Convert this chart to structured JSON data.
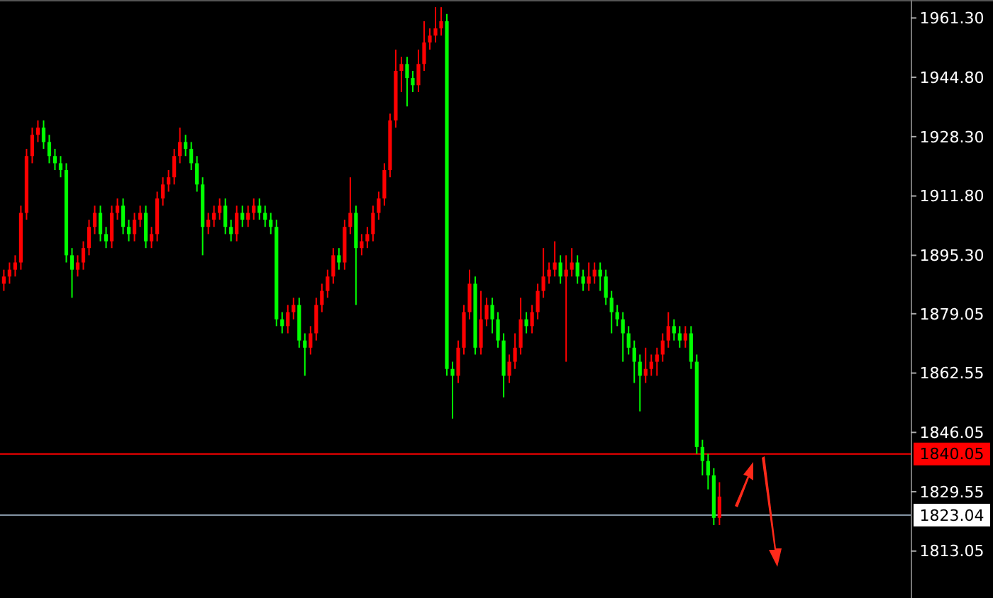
{
  "chart_data": {
    "type": "candlestick",
    "ylim": [
      1800,
      1966.3
    ],
    "yticks": [
      {
        "value": 1961.3,
        "label": "1961.30"
      },
      {
        "value": 1944.8,
        "label": "1944.80"
      },
      {
        "value": 1928.3,
        "label": "1928.30"
      },
      {
        "value": 1911.8,
        "label": "1911.80"
      },
      {
        "value": 1895.3,
        "label": "1895.30"
      },
      {
        "value": 1879.05,
        "label": "1879.05"
      },
      {
        "value": 1862.55,
        "label": "1862.55"
      },
      {
        "value": 1846.05,
        "label": "1846.05"
      },
      {
        "value": 1829.55,
        "label": "1829.55"
      },
      {
        "value": 1813.05,
        "label": "1813.05"
      }
    ],
    "grid": false,
    "tick_labels": "y",
    "ref_lines": [
      {
        "axis": "y",
        "value": 1840.05,
        "label": "1840.05",
        "color": "#ff0000"
      },
      {
        "axis": "y",
        "value": 1823.04,
        "label": "1823.04",
        "color": "#8494a4"
      }
    ],
    "categories": [
      null,
      null,
      null,
      null,
      null,
      null,
      null,
      null,
      null,
      null,
      null,
      null,
      null,
      null,
      null,
      null,
      null,
      null,
      null,
      null,
      null,
      null,
      null,
      null,
      null,
      null,
      null,
      null,
      null,
      null,
      null,
      null,
      null,
      null,
      null,
      null,
      null,
      null,
      null,
      null,
      null,
      null,
      null,
      null,
      null,
      null,
      null,
      null,
      null,
      null,
      null,
      null,
      null,
      null,
      null,
      null,
      null,
      null,
      null,
      null,
      null,
      null,
      null,
      null,
      null,
      null,
      null,
      null,
      null,
      null,
      null,
      null,
      null,
      null,
      null,
      null,
      null,
      null,
      null,
      null,
      null,
      null,
      null,
      null,
      null,
      null,
      null,
      null,
      null,
      null,
      null,
      null,
      null,
      null,
      null,
      null,
      null,
      null,
      null,
      null,
      null,
      null,
      null,
      null,
      null,
      null,
      null,
      null,
      null,
      null,
      null,
      null,
      null,
      null,
      null,
      null,
      null,
      null,
      null,
      null,
      null,
      null,
      null,
      null,
      null,
      null,
      null,
      null,
      null,
      null,
      null,
      null,
      null,
      null,
      null,
      null,
      null,
      null,
      null,
      null,
      null,
      null,
      null,
      null,
      null,
      null,
      null,
      null,
      null,
      null,
      null,
      null,
      null,
      null,
      null,
      null,
      null,
      null,
      null,
      null
    ],
    "ohlc": [
      [
        1887.4,
        1891.3,
        1885.4,
        1889.4
      ],
      [
        1889.4,
        1893.3,
        1887.4,
        1891.3
      ],
      [
        1891.3,
        1895.3,
        1889.4,
        1893.3
      ],
      [
        1893.3,
        1909.1,
        1891.3,
        1907.1
      ],
      [
        1907.1,
        1924.9,
        1905.2,
        1922.9
      ],
      [
        1922.9,
        1930.8,
        1920.9,
        1928.8
      ],
      [
        1928.8,
        1932.8,
        1926.8,
        1930.8
      ],
      [
        1930.8,
        1932.8,
        1924.9,
        1926.8
      ],
      [
        1926.8,
        1928.8,
        1920.9,
        1922.9
      ],
      [
        1922.9,
        1924.9,
        1919.0,
        1920.9
      ],
      [
        1920.9,
        1922.9,
        1917.0,
        1919.0
      ],
      [
        1919.0,
        1920.9,
        1893.3,
        1895.3
      ],
      [
        1895.3,
        1897.3,
        1883.5,
        1891.3
      ],
      [
        1891.3,
        1895.3,
        1889.4,
        1893.3
      ],
      [
        1893.3,
        1899.2,
        1891.3,
        1897.3
      ],
      [
        1897.3,
        1905.2,
        1895.3,
        1903.2
      ],
      [
        1903.2,
        1909.1,
        1901.2,
        1907.1
      ],
      [
        1907.1,
        1909.1,
        1899.2,
        1901.2
      ],
      [
        1901.2,
        1903.2,
        1897.3,
        1899.2
      ],
      [
        1899.2,
        1909.1,
        1897.3,
        1907.1
      ],
      [
        1907.1,
        1911.1,
        1905.2,
        1909.1
      ],
      [
        1909.1,
        1911.1,
        1901.2,
        1903.2
      ],
      [
        1903.2,
        1905.2,
        1899.2,
        1901.2
      ],
      [
        1901.2,
        1907.1,
        1899.2,
        1905.2
      ],
      [
        1905.2,
        1909.1,
        1903.2,
        1907.1
      ],
      [
        1907.1,
        1909.1,
        1897.3,
        1899.2
      ],
      [
        1899.2,
        1903.2,
        1897.3,
        1901.2
      ],
      [
        1901.2,
        1913.0,
        1899.2,
        1911.1
      ],
      [
        1911.1,
        1917.0,
        1909.1,
        1915.0
      ],
      [
        1915.0,
        1919.0,
        1913.0,
        1917.0
      ],
      [
        1917.0,
        1924.9,
        1915.0,
        1922.9
      ],
      [
        1922.9,
        1930.8,
        1920.9,
        1926.8
      ],
      [
        1926.8,
        1928.8,
        1922.9,
        1924.9
      ],
      [
        1924.9,
        1926.8,
        1919.0,
        1920.9
      ],
      [
        1920.9,
        1922.9,
        1913.0,
        1915.0
      ],
      [
        1915.0,
        1917.0,
        1895.3,
        1903.2
      ],
      [
        1903.2,
        1907.1,
        1901.2,
        1905.2
      ],
      [
        1905.2,
        1909.1,
        1903.2,
        1907.1
      ],
      [
        1907.1,
        1911.1,
        1905.2,
        1909.1
      ],
      [
        1909.1,
        1911.1,
        1901.2,
        1903.2
      ],
      [
        1903.2,
        1905.2,
        1899.2,
        1901.2
      ],
      [
        1901.2,
        1909.1,
        1899.2,
        1907.1
      ],
      [
        1907.1,
        1909.1,
        1903.2,
        1905.2
      ],
      [
        1905.2,
        1909.1,
        1903.2,
        1907.1
      ],
      [
        1907.1,
        1911.1,
        1905.2,
        1909.1
      ],
      [
        1909.1,
        1911.1,
        1905.2,
        1907.1
      ],
      [
        1907.1,
        1909.1,
        1903.2,
        1905.2
      ],
      [
        1905.2,
        1907.1,
        1901.2,
        1903.2
      ],
      [
        1903.2,
        1905.2,
        1875.6,
        1877.5
      ],
      [
        1877.5,
        1879.5,
        1873.6,
        1875.6
      ],
      [
        1875.6,
        1881.5,
        1873.6,
        1879.5
      ],
      [
        1879.5,
        1883.5,
        1877.5,
        1881.5
      ],
      [
        1881.5,
        1883.5,
        1869.6,
        1871.6
      ],
      [
        1871.6,
        1873.6,
        1861.8,
        1869.6
      ],
      [
        1869.6,
        1875.6,
        1867.7,
        1873.6
      ],
      [
        1873.6,
        1883.5,
        1871.6,
        1881.5
      ],
      [
        1881.5,
        1887.4,
        1879.5,
        1885.4
      ],
      [
        1885.4,
        1891.3,
        1883.5,
        1889.4
      ],
      [
        1889.4,
        1897.3,
        1887.4,
        1895.3
      ],
      [
        1895.3,
        1897.3,
        1891.3,
        1893.3
      ],
      [
        1893.3,
        1905.2,
        1891.3,
        1903.2
      ],
      [
        1903.2,
        1917.0,
        1901.2,
        1907.1
      ],
      [
        1907.1,
        1909.1,
        1881.5,
        1897.3
      ],
      [
        1897.3,
        1901.2,
        1895.3,
        1899.2
      ],
      [
        1899.2,
        1903.2,
        1897.3,
        1901.2
      ],
      [
        1901.2,
        1909.1,
        1899.2,
        1907.1
      ],
      [
        1907.1,
        1913.0,
        1905.2,
        1911.1
      ],
      [
        1911.1,
        1920.9,
        1909.1,
        1919.0
      ],
      [
        1919.0,
        1934.7,
        1917.0,
        1932.8
      ],
      [
        1932.8,
        1952.5,
        1930.8,
        1946.6
      ],
      [
        1946.6,
        1950.5,
        1940.7,
        1948.5
      ],
      [
        1948.5,
        1950.5,
        1936.7,
        1944.6
      ],
      [
        1944.6,
        1946.6,
        1940.7,
        1942.6
      ],
      [
        1942.6,
        1952.5,
        1940.7,
        1948.5
      ],
      [
        1948.5,
        1960.4,
        1946.6,
        1954.5
      ],
      [
        1954.5,
        1958.4,
        1952.5,
        1956.4
      ],
      [
        1956.4,
        1964.3,
        1954.5,
        1958.4
      ],
      [
        1958.4,
        1964.3,
        1956.4,
        1960.4
      ],
      [
        1960.4,
        1962.4,
        1861.8,
        1863.7
      ],
      [
        1863.7,
        1865.7,
        1849.9,
        1861.8
      ],
      [
        1861.8,
        1871.6,
        1859.8,
        1869.6
      ],
      [
        1869.6,
        1881.5,
        1867.7,
        1879.5
      ],
      [
        1879.5,
        1891.3,
        1877.5,
        1887.4
      ],
      [
        1887.4,
        1889.4,
        1867.7,
        1869.6
      ],
      [
        1869.6,
        1885.4,
        1867.7,
        1877.5
      ],
      [
        1877.5,
        1883.5,
        1875.6,
        1881.5
      ],
      [
        1881.5,
        1883.5,
        1873.6,
        1877.5
      ],
      [
        1877.5,
        1879.5,
        1869.6,
        1871.6
      ],
      [
        1871.6,
        1873.6,
        1855.8,
        1861.8
      ],
      [
        1861.8,
        1867.7,
        1859.8,
        1865.7
      ],
      [
        1865.7,
        1873.6,
        1863.7,
        1869.6
      ],
      [
        1869.6,
        1883.5,
        1867.7,
        1877.5
      ],
      [
        1877.5,
        1879.5,
        1873.6,
        1875.6
      ],
      [
        1875.6,
        1881.5,
        1873.6,
        1879.5
      ],
      [
        1879.5,
        1887.4,
        1877.5,
        1885.4
      ],
      [
        1885.4,
        1897.3,
        1883.5,
        1889.4
      ],
      [
        1889.4,
        1893.3,
        1887.4,
        1891.3
      ],
      [
        1891.3,
        1899.2,
        1889.4,
        1893.3
      ],
      [
        1893.3,
        1895.3,
        1887.4,
        1889.4
      ],
      [
        1889.4,
        1895.3,
        1865.7,
        1891.3
      ],
      [
        1891.3,
        1897.3,
        1889.4,
        1893.3
      ],
      [
        1893.3,
        1895.3,
        1887.4,
        1889.4
      ],
      [
        1889.4,
        1891.3,
        1885.4,
        1887.4
      ],
      [
        1887.4,
        1893.3,
        1885.4,
        1889.4
      ],
      [
        1889.4,
        1893.3,
        1887.4,
        1891.3
      ],
      [
        1891.3,
        1893.3,
        1885.4,
        1889.4
      ],
      [
        1889.4,
        1891.3,
        1881.5,
        1883.5
      ],
      [
        1883.5,
        1885.4,
        1873.6,
        1879.5
      ],
      [
        1879.5,
        1881.5,
        1875.6,
        1877.5
      ],
      [
        1877.5,
        1879.5,
        1865.7,
        1873.6
      ],
      [
        1873.6,
        1875.6,
        1867.7,
        1869.6
      ],
      [
        1869.6,
        1871.6,
        1859.8,
        1865.7
      ],
      [
        1865.7,
        1867.7,
        1851.9,
        1861.8
      ],
      [
        1861.8,
        1869.6,
        1859.8,
        1863.7
      ],
      [
        1863.7,
        1867.7,
        1861.8,
        1865.7
      ],
      [
        1865.7,
        1869.6,
        1861.8,
        1867.7
      ],
      [
        1867.7,
        1873.6,
        1865.7,
        1871.6
      ],
      [
        1871.6,
        1879.5,
        1869.6,
        1875.6
      ],
      [
        1875.6,
        1877.5,
        1871.6,
        1873.6
      ],
      [
        1873.6,
        1875.6,
        1869.6,
        1871.6
      ],
      [
        1871.6,
        1875.6,
        1869.6,
        1873.6
      ],
      [
        1873.6,
        1875.6,
        1863.7,
        1865.7
      ],
      [
        1865.7,
        1867.7,
        1840.1,
        1842.0
      ],
      [
        1842.0,
        1844.0,
        1834.1,
        1838.1
      ],
      [
        1838.1,
        1840.1,
        1830.2,
        1834.1
      ],
      [
        1834.1,
        1836.1,
        1820.3,
        1822.3
      ],
      [
        1822.3,
        1832.2,
        1820.3,
        1828.2
      ],
      null,
      null,
      null,
      null,
      null,
      null,
      null,
      null,
      null,
      null,
      null,
      null,
      null,
      null,
      null,
      null,
      null,
      null,
      null,
      null,
      null,
      null,
      null,
      null,
      null,
      null,
      null,
      null,
      null,
      null,
      null,
      null,
      null
    ]
  }
}
